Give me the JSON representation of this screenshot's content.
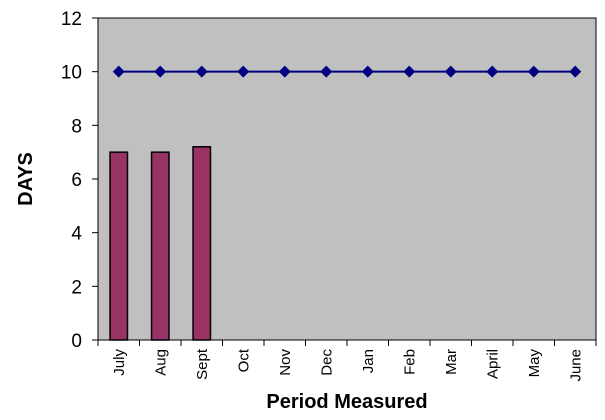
{
  "chart_data": {
    "type": "bar",
    "title": "",
    "xlabel": "Period Measured",
    "ylabel": "DAYS",
    "ylim": [
      0,
      12
    ],
    "yticks": [
      "0",
      "2",
      "4",
      "6",
      "8",
      "10",
      "12"
    ],
    "categories": [
      "July",
      "Aug",
      "Sept",
      "Oct",
      "Nov",
      "Dec",
      "Jan",
      "Feb",
      "Mar",
      "April",
      "May",
      "June"
    ],
    "series": [
      {
        "type": "bar",
        "values": [
          7.0,
          7.0,
          7.2,
          null,
          null,
          null,
          null,
          null,
          null,
          null,
          null,
          null
        ]
      },
      {
        "type": "line",
        "marker": "diamond",
        "values": [
          10,
          10,
          10,
          10,
          10,
          10,
          10,
          10,
          10,
          10,
          10,
          10
        ]
      }
    ],
    "grid": false,
    "legend": "none",
    "colors": {
      "plot_background": "#c0c0c0",
      "bar_fill": "#993366",
      "bar_stroke": "#000000",
      "line": "#000080",
      "marker": "#000080"
    }
  }
}
